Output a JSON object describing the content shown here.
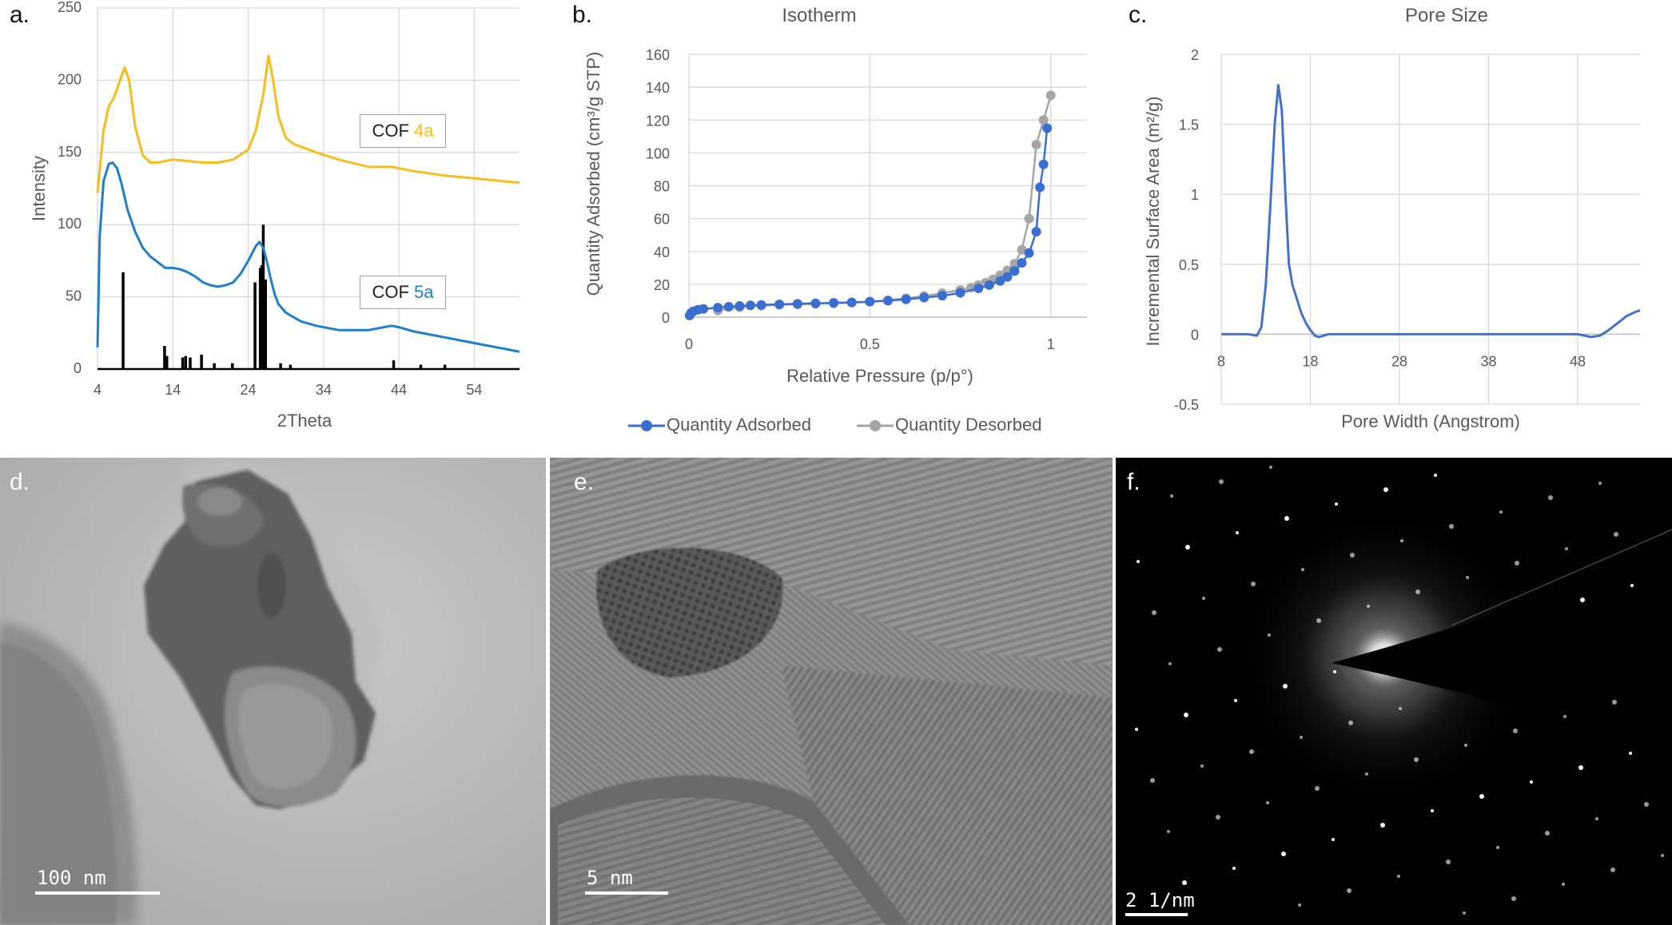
{
  "panels": {
    "a": {
      "letter": "a."
    },
    "b": {
      "letter": "b."
    },
    "c": {
      "letter": "c."
    },
    "d": {
      "letter": "d.",
      "scale_label": "100 nm"
    },
    "e": {
      "letter": "e.",
      "scale_label": "5 nm"
    },
    "f": {
      "letter": "f.",
      "scale_label": "2 1/nm"
    }
  },
  "colors": {
    "cof4a": "#f6be1d",
    "cof5a": "#1f7fc8",
    "stick": "#000000",
    "adsorbed": "#3a6fd1",
    "desorbed": "#a6a6a6",
    "poresize": "#4472c4"
  },
  "chart_data": [
    {
      "type": "line",
      "title": "",
      "xlabel": "2Theta",
      "ylabel": "Intensity",
      "xlim": [
        4,
        60
      ],
      "ylim": [
        0,
        250
      ],
      "xticks": [
        "4",
        "14",
        "24",
        "34",
        "44",
        "54"
      ],
      "yticks": [
        "0",
        "50",
        "100",
        "150",
        "200",
        "250"
      ],
      "annotations": [
        {
          "prefix": "COF ",
          "suffix": "4a"
        },
        {
          "prefix": "COF ",
          "suffix": "5a"
        }
      ],
      "series": [
        {
          "name": "COF 4a",
          "x": [
            4,
            4.8,
            5.5,
            6.2,
            7,
            7.6,
            8.2,
            9,
            10,
            11,
            12,
            13,
            14,
            16,
            18,
            20,
            22,
            24,
            25,
            26,
            26.7,
            27.3,
            28,
            29,
            30,
            31,
            33,
            36,
            40,
            43,
            44,
            46,
            50,
            54,
            58,
            60
          ],
          "y": [
            122,
            165,
            182,
            188,
            200,
            209,
            200,
            168,
            148,
            143,
            143,
            144,
            145,
            144,
            143,
            143,
            145,
            152,
            165,
            190,
            217,
            200,
            175,
            160,
            156,
            154,
            150,
            145,
            140,
            140,
            139,
            137,
            134,
            132,
            130,
            129
          ]
        },
        {
          "name": "COF 5a",
          "x": [
            4,
            4.3,
            4.8,
            5.5,
            6,
            6.6,
            7.2,
            8,
            9,
            10,
            11,
            12,
            13,
            14,
            15,
            16,
            17,
            18,
            19,
            20,
            21,
            22,
            23,
            24,
            25,
            25.5,
            26,
            26.5,
            27,
            27.5,
            28,
            29,
            30,
            31,
            33,
            36,
            40,
            42,
            43,
            44,
            46,
            50,
            54,
            58,
            60
          ],
          "y": [
            15,
            92,
            130,
            142,
            143,
            139,
            128,
            110,
            95,
            84,
            78,
            74,
            70,
            70,
            69,
            67,
            64,
            60,
            58,
            57,
            58,
            60,
            66,
            75,
            85,
            88,
            84,
            74,
            62,
            52,
            45,
            39,
            36,
            33,
            30,
            27,
            27,
            29,
            30,
            29,
            26,
            22,
            18,
            14,
            12
          ]
        },
        {
          "name": "sticks",
          "x": [
            7.4,
            12.9,
            13.2,
            15.3,
            15.7,
            16.3,
            17.8,
            19.5,
            21.9,
            24.9,
            25.6,
            25.8,
            26.0,
            26.3,
            28.3,
            29.6,
            43.3,
            46.9,
            50.1
          ],
          "y": [
            67,
            16,
            9,
            8,
            9,
            8,
            10,
            4,
            4,
            60,
            70,
            72,
            100,
            62,
            4,
            3,
            6,
            3,
            3
          ]
        }
      ]
    },
    {
      "type": "line",
      "title": "Isotherm",
      "xlabel": "Relative Pressure (p/p°)",
      "ylabel": "Quantity Adsorbed (cm³/g STP)",
      "xlim": [
        0,
        1.1
      ],
      "ylim": [
        0,
        160
      ],
      "xticks": [
        "0",
        "0.5",
        "1"
      ],
      "yticks": [
        "0",
        "20",
        "40",
        "60",
        "80",
        "100",
        "120",
        "140",
        "160"
      ],
      "legend_position": "bottom",
      "series": [
        {
          "name": "Quantity Adsorbed",
          "x": [
            0.002,
            0.006,
            0.012,
            0.025,
            0.04,
            0.08,
            0.11,
            0.14,
            0.17,
            0.2,
            0.25,
            0.3,
            0.35,
            0.4,
            0.45,
            0.5,
            0.55,
            0.6,
            0.65,
            0.7,
            0.75,
            0.8,
            0.83,
            0.86,
            0.88,
            0.9,
            0.92,
            0.94,
            0.96,
            0.97,
            0.98,
            0.99
          ],
          "y": [
            1,
            2.5,
            3.5,
            4.5,
            5,
            5.8,
            6.3,
            6.8,
            7.2,
            7.4,
            7.8,
            8.1,
            8.4,
            8.7,
            9,
            9.4,
            10,
            10.8,
            11.9,
            13,
            14.8,
            17.5,
            19.5,
            22,
            24.5,
            28,
            33,
            39,
            52,
            79,
            93,
            115
          ]
        },
        {
          "name": "Quantity Desorbed",
          "x": [
            0.08,
            0.14,
            0.2,
            0.25,
            0.3,
            0.35,
            0.4,
            0.45,
            0.5,
            0.55,
            0.6,
            0.65,
            0.7,
            0.75,
            0.78,
            0.8,
            0.82,
            0.84,
            0.86,
            0.88,
            0.9,
            0.92,
            0.94,
            0.96,
            0.98,
            1.0
          ],
          "y": [
            4,
            6,
            7,
            7.5,
            7.8,
            8.1,
            8.4,
            8.8,
            9.4,
            10.3,
            11.5,
            12.8,
            14.6,
            16.5,
            18,
            19.5,
            21,
            23,
            25.5,
            28.5,
            32.5,
            41,
            60,
            105,
            120,
            135
          ]
        }
      ]
    },
    {
      "type": "line",
      "title": "Pore Size",
      "xlabel": "Pore Width (Angstrom)",
      "ylabel": "Incremental Surface Area (m²/g)",
      "xlim": [
        8,
        55
      ],
      "ylim": [
        -0.5,
        2
      ],
      "xticks": [
        "8",
        "18",
        "28",
        "38",
        "48"
      ],
      "yticks": [
        "-0.5",
        "0",
        "0.5",
        "1",
        "1.5",
        "2"
      ],
      "series": [
        {
          "name": "Pore size",
          "x": [
            8,
            10,
            11,
            12,
            12.5,
            13,
            13.5,
            14,
            14.4,
            14.8,
            15.2,
            15.6,
            16,
            16.5,
            17,
            17.5,
            18,
            18.5,
            19,
            20,
            25,
            30,
            40,
            48,
            49.5,
            50.5,
            51.5,
            52.5,
            53.5,
            54.5,
            55
          ],
          "y": [
            0,
            0,
            0,
            -0.01,
            0.05,
            0.35,
            0.9,
            1.5,
            1.78,
            1.6,
            1.0,
            0.5,
            0.35,
            0.25,
            0.15,
            0.08,
            0.03,
            -0.01,
            -0.02,
            0,
            0,
            0,
            0,
            0,
            -0.02,
            -0.01,
            0.03,
            0.08,
            0.13,
            0.16,
            0.17
          ]
        }
      ]
    }
  ]
}
